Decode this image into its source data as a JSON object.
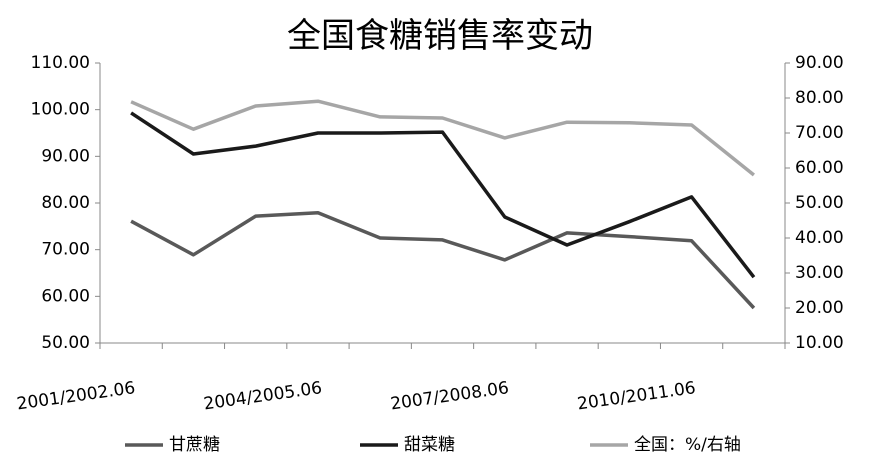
{
  "chart_data": {
    "type": "line",
    "title": "全国食糖销售率变动",
    "categories": [
      "2001/2002.06",
      null,
      null,
      "2004/2005.06",
      null,
      null,
      "2007/2008.06",
      null,
      null,
      "2010/2011.06",
      null
    ],
    "series": [
      {
        "name": "甘蔗糖",
        "color": "#595959",
        "values": [
          76.1,
          68.9,
          77.2,
          77.9,
          72.5,
          72.1,
          67.8,
          73.6,
          72.8,
          71.9,
          57.5
        ]
      },
      {
        "name": "甜菜糖",
        "color": "#1a1a1a",
        "values": [
          99.3,
          90.5,
          92.2,
          95.0,
          95.0,
          95.2,
          77.0,
          71.0,
          76.0,
          81.3,
          64.1
        ]
      },
      {
        "name": "全国：%/右轴",
        "color": "#a6a6a6",
        "axis": "y2",
        "values": [
          78.9,
          71.1,
          77.7,
          79.1,
          74.6,
          74.3,
          68.6,
          73.1,
          72.9,
          72.3,
          58.0
        ]
      }
    ],
    "ylim": [
      50,
      110
    ],
    "yticks": [
      {
        "value": 50,
        "label": "50.00"
      },
      {
        "value": 60,
        "label": "60.00"
      },
      {
        "value": 70,
        "label": "70.00"
      },
      {
        "value": 80,
        "label": "80.00"
      },
      {
        "value": 90,
        "label": "90.00"
      },
      {
        "value": 100,
        "label": "100.00"
      },
      {
        "value": 110,
        "label": "110.00"
      }
    ],
    "y2lim": [
      10,
      90
    ],
    "y2ticks": [
      {
        "value": 10,
        "label": "10.00"
      },
      {
        "value": 20,
        "label": "20.00"
      },
      {
        "value": 30,
        "label": "30.00"
      },
      {
        "value": 40,
        "label": "40.00"
      },
      {
        "value": 50,
        "label": "50.00"
      },
      {
        "value": 60,
        "label": "60.00"
      },
      {
        "value": 70,
        "label": "70.00"
      },
      {
        "value": 80,
        "label": "80.00"
      },
      {
        "value": 90,
        "label": "90.00"
      }
    ],
    "legend": "bottom"
  }
}
